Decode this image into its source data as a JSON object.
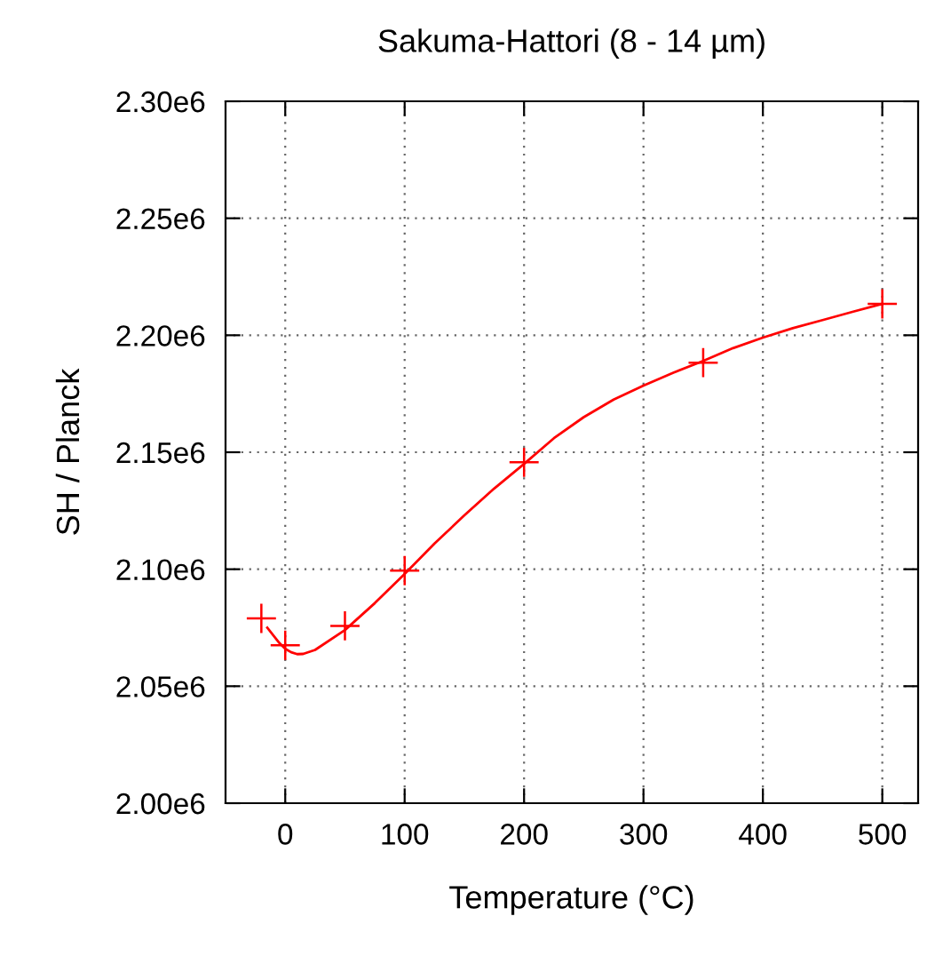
{
  "chart_data": {
    "type": "line",
    "title": "Sakuma-Hattori (8 - 14 µm)",
    "xlabel": "Temperature (°C)",
    "ylabel": "SH / Planck",
    "xlim": [
      -50,
      530
    ],
    "xticks": [
      0,
      100,
      200,
      300,
      400,
      500
    ],
    "ylim": [
      2000000,
      2300000
    ],
    "yticks": [
      {
        "value": 2000000,
        "label": "2.00e6"
      },
      {
        "value": 2050000,
        "label": "2.05e6"
      },
      {
        "value": 2100000,
        "label": "2.10e6"
      },
      {
        "value": 2150000,
        "label": "2.15e6"
      },
      {
        "value": 2200000,
        "label": "2.20e6"
      },
      {
        "value": 2250000,
        "label": "2.25e6"
      },
      {
        "value": 2300000,
        "label": "2.30e6"
      }
    ],
    "grid": true,
    "series": [
      {
        "type": "scatter",
        "color": "#ff0000",
        "marker": "cross",
        "x": [
          -20,
          0,
          50,
          100,
          200,
          350,
          500
        ],
        "values": [
          2079000,
          2067500,
          2075800,
          2099400,
          2145700,
          2188300,
          2213400
        ]
      },
      {
        "color": "#ff0000",
        "line_style": "solid",
        "x": [
          -15,
          -5,
          0,
          5,
          10,
          15,
          25,
          50,
          75,
          100,
          125,
          150,
          175,
          200,
          225,
          250,
          275,
          300,
          325,
          350,
          375,
          400,
          425,
          450,
          475,
          500
        ],
        "values": [
          2075000,
          2068500,
          2066000,
          2064500,
          2063700,
          2063800,
          2065500,
          2074000,
          2085500,
          2098000,
          2111000,
          2123000,
          2134500,
          2145000,
          2156000,
          2165000,
          2172500,
          2178500,
          2184000,
          2189000,
          2194500,
          2199000,
          2203000,
          2206500,
          2210000,
          2213400
        ]
      }
    ]
  }
}
